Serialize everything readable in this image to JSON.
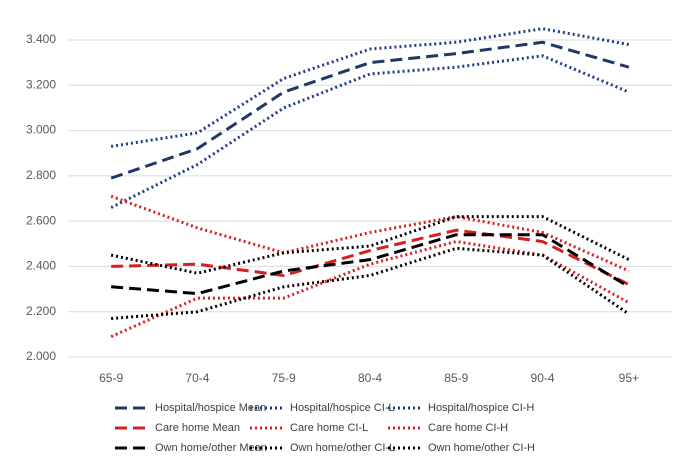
{
  "chart_data": {
    "type": "line",
    "categories": [
      "65-9",
      "70-4",
      "75-9",
      "80-4",
      "85-9",
      "90-4",
      "95+"
    ],
    "ylim": [
      2.0,
      3.4
    ],
    "yticks": [
      {
        "value": 2.0,
        "label": "2.000"
      },
      {
        "value": 2.2,
        "label": "2.200"
      },
      {
        "value": 2.4,
        "label": "2.400"
      },
      {
        "value": 2.6,
        "label": "2.600"
      },
      {
        "value": 2.8,
        "label": "2.800"
      },
      {
        "value": 3.0,
        "label": "3.000"
      },
      {
        "value": 3.2,
        "label": "3.200"
      },
      {
        "value": 3.4,
        "label": "3.400"
      }
    ],
    "grid": true,
    "legend": "bottom",
    "series": [
      {
        "name": "Hospital/hospice Mean",
        "color": "#1f3864",
        "style": "dashed",
        "values": [
          2.79,
          2.92,
          3.17,
          3.3,
          3.34,
          3.39,
          3.28
        ]
      },
      {
        "name": "Hospital/hospice CI-L",
        "color": "#1f3c88",
        "style": "dotted",
        "values": [
          2.66,
          2.85,
          3.1,
          3.25,
          3.28,
          3.33,
          3.17
        ]
      },
      {
        "name": "Hospital/hospice CI-H",
        "color": "#1f3c88",
        "style": "dotted",
        "values": [
          2.93,
          2.99,
          3.23,
          3.36,
          3.39,
          3.45,
          3.38
        ]
      },
      {
        "name": "Care home Mean",
        "color": "#d62020",
        "style": "dashed",
        "values": [
          2.4,
          2.41,
          2.36,
          2.47,
          2.56,
          2.51,
          2.32
        ]
      },
      {
        "name": "Care home CI-L",
        "color": "#d62020",
        "style": "dotted",
        "values": [
          2.09,
          2.26,
          2.26,
          2.41,
          2.51,
          2.45,
          2.24
        ]
      },
      {
        "name": "Care home CI-H",
        "color": "#d62020",
        "style": "dotted",
        "values": [
          2.71,
          2.57,
          2.46,
          2.55,
          2.62,
          2.55,
          2.38
        ]
      },
      {
        "name": "Own home/other Mean",
        "color": "#000000",
        "style": "dashed",
        "values": [
          2.31,
          2.28,
          2.38,
          2.43,
          2.54,
          2.54,
          2.31
        ]
      },
      {
        "name": "Own home/other CI-L",
        "color": "#000000",
        "style": "dotted",
        "values": [
          2.17,
          2.2,
          2.31,
          2.36,
          2.48,
          2.45,
          2.19
        ]
      },
      {
        "name": "Own home/other CI-H",
        "color": "#000000",
        "style": "dotted",
        "values": [
          2.45,
          2.37,
          2.46,
          2.49,
          2.62,
          2.62,
          2.43
        ]
      }
    ]
  }
}
